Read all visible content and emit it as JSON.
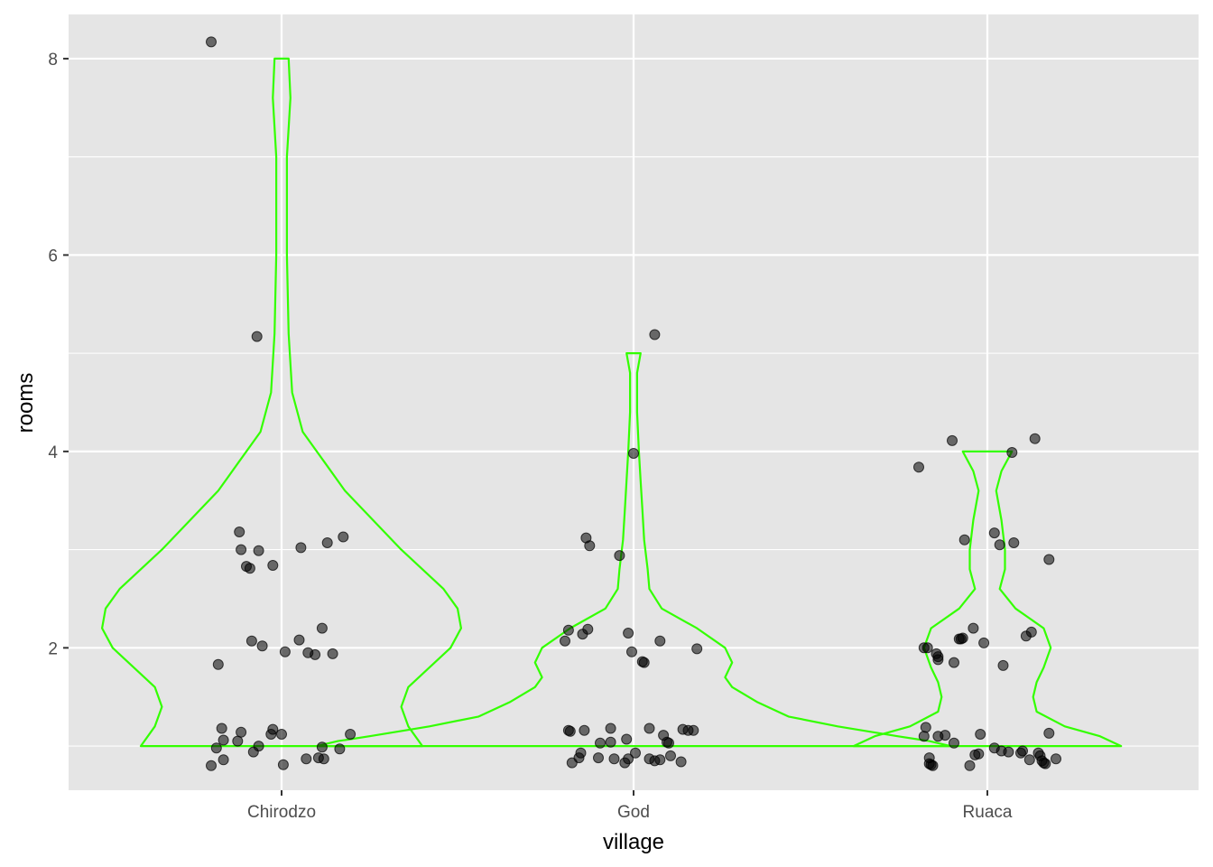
{
  "chart_data": {
    "type": "violin",
    "title": "",
    "xlabel": "village",
    "ylabel": "rooms",
    "categories": [
      "Chirodzo",
      "God",
      "Ruaca"
    ],
    "ylim": [
      0.55,
      8.45
    ],
    "yticks": [
      2,
      4,
      6,
      8
    ],
    "grid": true,
    "legend": "none",
    "colors": {
      "panel": "#e5e5e5",
      "grid": "#ffffff",
      "violin": "#33ff00",
      "point": "#000000"
    },
    "violins": [
      {
        "category": "Chirodzo",
        "density": [
          [
            1.0,
            0.4
          ],
          [
            1.2,
            0.36
          ],
          [
            1.4,
            0.34
          ],
          [
            1.6,
            0.36
          ],
          [
            1.8,
            0.42
          ],
          [
            2.0,
            0.48
          ],
          [
            2.2,
            0.51
          ],
          [
            2.4,
            0.5
          ],
          [
            2.6,
            0.46
          ],
          [
            2.8,
            0.4
          ],
          [
            3.0,
            0.34
          ],
          [
            3.3,
            0.26
          ],
          [
            3.6,
            0.18
          ],
          [
            3.9,
            0.12
          ],
          [
            4.2,
            0.06
          ],
          [
            4.6,
            0.03
          ],
          [
            5.2,
            0.02
          ],
          [
            6.0,
            0.015
          ],
          [
            7.0,
            0.015
          ],
          [
            7.6,
            0.025
          ],
          [
            8.0,
            0.02
          ]
        ]
      },
      {
        "category": "God",
        "density": [
          [
            1.0,
            0.9
          ],
          [
            1.05,
            0.84
          ],
          [
            1.1,
            0.75
          ],
          [
            1.2,
            0.58
          ],
          [
            1.3,
            0.44
          ],
          [
            1.45,
            0.35
          ],
          [
            1.6,
            0.28
          ],
          [
            1.7,
            0.26
          ],
          [
            1.85,
            0.28
          ],
          [
            2.0,
            0.26
          ],
          [
            2.2,
            0.18
          ],
          [
            2.4,
            0.08
          ],
          [
            2.6,
            0.045
          ],
          [
            2.8,
            0.04
          ],
          [
            3.1,
            0.03
          ],
          [
            3.4,
            0.025
          ],
          [
            3.7,
            0.02
          ],
          [
            4.0,
            0.015
          ],
          [
            4.4,
            0.01
          ],
          [
            4.8,
            0.01
          ],
          [
            5.0,
            0.02
          ]
        ]
      },
      {
        "category": "Ruaca",
        "density": [
          [
            1.0,
            0.38
          ],
          [
            1.1,
            0.32
          ],
          [
            1.2,
            0.22
          ],
          [
            1.35,
            0.14
          ],
          [
            1.5,
            0.13
          ],
          [
            1.65,
            0.14
          ],
          [
            1.8,
            0.16
          ],
          [
            2.0,
            0.18
          ],
          [
            2.2,
            0.16
          ],
          [
            2.4,
            0.08
          ],
          [
            2.6,
            0.035
          ],
          [
            2.8,
            0.05
          ],
          [
            3.0,
            0.05
          ],
          [
            3.3,
            0.04
          ],
          [
            3.6,
            0.025
          ],
          [
            3.8,
            0.04
          ],
          [
            4.0,
            0.07
          ]
        ]
      }
    ],
    "points": [
      {
        "category": "Chirodzo",
        "offset": -0.2,
        "y": 8.17
      },
      {
        "category": "Chirodzo",
        "offset": -0.07,
        "y": 5.17
      },
      {
        "category": "Chirodzo",
        "offset": 0.175,
        "y": 3.13
      },
      {
        "category": "Chirodzo",
        "offset": 0.13,
        "y": 3.07
      },
      {
        "category": "Chirodzo",
        "offset": 0.055,
        "y": 3.02
      },
      {
        "category": "Chirodzo",
        "offset": -0.12,
        "y": 3.18
      },
      {
        "category": "Chirodzo",
        "offset": -0.115,
        "y": 3.0
      },
      {
        "category": "Chirodzo",
        "offset": -0.065,
        "y": 2.99
      },
      {
        "category": "Chirodzo",
        "offset": -0.1,
        "y": 2.83
      },
      {
        "category": "Chirodzo",
        "offset": -0.09,
        "y": 2.81
      },
      {
        "category": "Chirodzo",
        "offset": -0.025,
        "y": 2.84
      },
      {
        "category": "Chirodzo",
        "offset": 0.115,
        "y": 2.2
      },
      {
        "category": "Chirodzo",
        "offset": 0.05,
        "y": 2.08
      },
      {
        "category": "Chirodzo",
        "offset": -0.085,
        "y": 2.07
      },
      {
        "category": "Chirodzo",
        "offset": -0.055,
        "y": 2.02
      },
      {
        "category": "Chirodzo",
        "offset": 0.01,
        "y": 1.96
      },
      {
        "category": "Chirodzo",
        "offset": 0.075,
        "y": 1.95
      },
      {
        "category": "Chirodzo",
        "offset": 0.095,
        "y": 1.93
      },
      {
        "category": "Chirodzo",
        "offset": 0.145,
        "y": 1.94
      },
      {
        "category": "Chirodzo",
        "offset": -0.18,
        "y": 1.83
      },
      {
        "category": "Chirodzo",
        "offset": -0.17,
        "y": 1.18
      },
      {
        "category": "Chirodzo",
        "offset": -0.115,
        "y": 1.14
      },
      {
        "category": "Chirodzo",
        "offset": -0.025,
        "y": 1.17
      },
      {
        "category": "Chirodzo",
        "offset": -0.03,
        "y": 1.12
      },
      {
        "category": "Chirodzo",
        "offset": 0.0,
        "y": 1.12
      },
      {
        "category": "Chirodzo",
        "offset": 0.195,
        "y": 1.12
      },
      {
        "category": "Chirodzo",
        "offset": -0.165,
        "y": 1.06
      },
      {
        "category": "Chirodzo",
        "offset": -0.125,
        "y": 1.05
      },
      {
        "category": "Chirodzo",
        "offset": -0.065,
        "y": 1.0
      },
      {
        "category": "Chirodzo",
        "offset": 0.115,
        "y": 0.99
      },
      {
        "category": "Chirodzo",
        "offset": 0.165,
        "y": 0.97
      },
      {
        "category": "Chirodzo",
        "offset": -0.185,
        "y": 0.98
      },
      {
        "category": "Chirodzo",
        "offset": -0.08,
        "y": 0.94
      },
      {
        "category": "Chirodzo",
        "offset": 0.07,
        "y": 0.87
      },
      {
        "category": "Chirodzo",
        "offset": 0.105,
        "y": 0.88
      },
      {
        "category": "Chirodzo",
        "offset": 0.12,
        "y": 0.87
      },
      {
        "category": "Chirodzo",
        "offset": -0.165,
        "y": 0.86
      },
      {
        "category": "Chirodzo",
        "offset": -0.2,
        "y": 0.8
      },
      {
        "category": "Chirodzo",
        "offset": 0.005,
        "y": 0.81
      },
      {
        "category": "God",
        "offset": 0.06,
        "y": 5.19
      },
      {
        "category": "God",
        "offset": 0.0,
        "y": 3.98
      },
      {
        "category": "God",
        "offset": -0.135,
        "y": 3.12
      },
      {
        "category": "God",
        "offset": -0.125,
        "y": 3.04
      },
      {
        "category": "God",
        "offset": -0.04,
        "y": 2.94
      },
      {
        "category": "God",
        "offset": -0.185,
        "y": 2.18
      },
      {
        "category": "God",
        "offset": -0.13,
        "y": 2.19
      },
      {
        "category": "God",
        "offset": -0.145,
        "y": 2.14
      },
      {
        "category": "God",
        "offset": -0.015,
        "y": 2.15
      },
      {
        "category": "God",
        "offset": -0.195,
        "y": 2.07
      },
      {
        "category": "God",
        "offset": 0.075,
        "y": 2.07
      },
      {
        "category": "God",
        "offset": 0.18,
        "y": 1.99
      },
      {
        "category": "God",
        "offset": -0.005,
        "y": 1.96
      },
      {
        "category": "God",
        "offset": 0.025,
        "y": 1.86
      },
      {
        "category": "God",
        "offset": 0.03,
        "y": 1.85
      },
      {
        "category": "God",
        "offset": -0.185,
        "y": 1.16
      },
      {
        "category": "God",
        "offset": -0.18,
        "y": 1.15
      },
      {
        "category": "God",
        "offset": -0.14,
        "y": 1.16
      },
      {
        "category": "God",
        "offset": -0.065,
        "y": 1.18
      },
      {
        "category": "God",
        "offset": 0.045,
        "y": 1.18
      },
      {
        "category": "God",
        "offset": 0.14,
        "y": 1.17
      },
      {
        "category": "God",
        "offset": 0.155,
        "y": 1.16
      },
      {
        "category": "God",
        "offset": 0.17,
        "y": 1.16
      },
      {
        "category": "God",
        "offset": 0.085,
        "y": 1.11
      },
      {
        "category": "God",
        "offset": -0.02,
        "y": 1.07
      },
      {
        "category": "God",
        "offset": -0.065,
        "y": 1.04
      },
      {
        "category": "God",
        "offset": -0.095,
        "y": 1.03
      },
      {
        "category": "God",
        "offset": 0.095,
        "y": 1.04
      },
      {
        "category": "God",
        "offset": 0.1,
        "y": 1.03
      },
      {
        "category": "God",
        "offset": -0.15,
        "y": 0.93
      },
      {
        "category": "God",
        "offset": -0.155,
        "y": 0.88
      },
      {
        "category": "God",
        "offset": -0.1,
        "y": 0.88
      },
      {
        "category": "God",
        "offset": -0.055,
        "y": 0.87
      },
      {
        "category": "God",
        "offset": -0.015,
        "y": 0.87
      },
      {
        "category": "God",
        "offset": 0.005,
        "y": 0.93
      },
      {
        "category": "God",
        "offset": 0.045,
        "y": 0.87
      },
      {
        "category": "God",
        "offset": 0.06,
        "y": 0.85
      },
      {
        "category": "God",
        "offset": 0.075,
        "y": 0.86
      },
      {
        "category": "God",
        "offset": 0.105,
        "y": 0.9
      },
      {
        "category": "God",
        "offset": -0.175,
        "y": 0.83
      },
      {
        "category": "God",
        "offset": -0.025,
        "y": 0.83
      },
      {
        "category": "God",
        "offset": 0.135,
        "y": 0.84
      },
      {
        "category": "Ruaca",
        "offset": 0.135,
        "y": 4.13
      },
      {
        "category": "Ruaca",
        "offset": -0.1,
        "y": 4.11
      },
      {
        "category": "Ruaca",
        "offset": 0.07,
        "y": 3.99
      },
      {
        "category": "Ruaca",
        "offset": -0.195,
        "y": 3.84
      },
      {
        "category": "Ruaca",
        "offset": 0.02,
        "y": 3.17
      },
      {
        "category": "Ruaca",
        "offset": -0.065,
        "y": 3.1
      },
      {
        "category": "Ruaca",
        "offset": 0.035,
        "y": 3.05
      },
      {
        "category": "Ruaca",
        "offset": 0.075,
        "y": 3.07
      },
      {
        "category": "Ruaca",
        "offset": 0.175,
        "y": 2.9
      },
      {
        "category": "Ruaca",
        "offset": -0.04,
        "y": 2.2
      },
      {
        "category": "Ruaca",
        "offset": 0.125,
        "y": 2.16
      },
      {
        "category": "Ruaca",
        "offset": 0.11,
        "y": 2.12
      },
      {
        "category": "Ruaca",
        "offset": -0.08,
        "y": 2.09
      },
      {
        "category": "Ruaca",
        "offset": -0.075,
        "y": 2.09
      },
      {
        "category": "Ruaca",
        "offset": -0.07,
        "y": 2.1
      },
      {
        "category": "Ruaca",
        "offset": -0.01,
        "y": 2.05
      },
      {
        "category": "Ruaca",
        "offset": -0.18,
        "y": 2.0
      },
      {
        "category": "Ruaca",
        "offset": -0.17,
        "y": 2.0
      },
      {
        "category": "Ruaca",
        "offset": -0.145,
        "y": 1.94
      },
      {
        "category": "Ruaca",
        "offset": -0.14,
        "y": 1.91
      },
      {
        "category": "Ruaca",
        "offset": -0.14,
        "y": 1.88
      },
      {
        "category": "Ruaca",
        "offset": -0.095,
        "y": 1.85
      },
      {
        "category": "Ruaca",
        "offset": 0.045,
        "y": 1.82
      },
      {
        "category": "Ruaca",
        "offset": -0.175,
        "y": 1.19
      },
      {
        "category": "Ruaca",
        "offset": -0.18,
        "y": 1.1
      },
      {
        "category": "Ruaca",
        "offset": -0.14,
        "y": 1.1
      },
      {
        "category": "Ruaca",
        "offset": -0.12,
        "y": 1.11
      },
      {
        "category": "Ruaca",
        "offset": -0.095,
        "y": 1.03
      },
      {
        "category": "Ruaca",
        "offset": -0.02,
        "y": 1.12
      },
      {
        "category": "Ruaca",
        "offset": 0.175,
        "y": 1.13
      },
      {
        "category": "Ruaca",
        "offset": 0.02,
        "y": 0.98
      },
      {
        "category": "Ruaca",
        "offset": 0.04,
        "y": 0.95
      },
      {
        "category": "Ruaca",
        "offset": 0.06,
        "y": 0.94
      },
      {
        "category": "Ruaca",
        "offset": 0.095,
        "y": 0.93
      },
      {
        "category": "Ruaca",
        "offset": 0.1,
        "y": 0.95
      },
      {
        "category": "Ruaca",
        "offset": -0.025,
        "y": 0.92
      },
      {
        "category": "Ruaca",
        "offset": -0.035,
        "y": 0.91
      },
      {
        "category": "Ruaca",
        "offset": 0.145,
        "y": 0.93
      },
      {
        "category": "Ruaca",
        "offset": 0.15,
        "y": 0.9
      },
      {
        "category": "Ruaca",
        "offset": -0.165,
        "y": 0.88
      },
      {
        "category": "Ruaca",
        "offset": 0.12,
        "y": 0.86
      },
      {
        "category": "Ruaca",
        "offset": 0.155,
        "y": 0.85
      },
      {
        "category": "Ruaca",
        "offset": 0.16,
        "y": 0.83
      },
      {
        "category": "Ruaca",
        "offset": 0.165,
        "y": 0.82
      },
      {
        "category": "Ruaca",
        "offset": 0.195,
        "y": 0.87
      },
      {
        "category": "Ruaca",
        "offset": -0.165,
        "y": 0.82
      },
      {
        "category": "Ruaca",
        "offset": -0.16,
        "y": 0.81
      },
      {
        "category": "Ruaca",
        "offset": -0.155,
        "y": 0.8
      },
      {
        "category": "Ruaca",
        "offset": -0.05,
        "y": 0.8
      }
    ]
  }
}
